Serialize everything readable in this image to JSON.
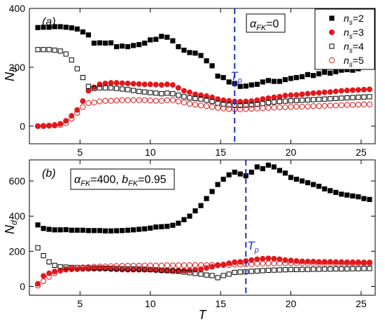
{
  "chart_data": [
    {
      "type": "scatter",
      "panel_label": "(a)",
      "annotation": {
        "symbol": "α",
        "sub": "FK",
        "value": "=0"
      },
      "transition": {
        "x": 16.0,
        "label_main": "T",
        "label_sub": "p"
      },
      "xlim": [
        1.4,
        26
      ],
      "ylim": [
        -60,
        400
      ],
      "xticks": [
        5,
        10,
        15,
        20,
        25
      ],
      "yticks": [
        0,
        200,
        400
      ],
      "ylabel": {
        "main": "N",
        "sub": "d"
      },
      "legend": {
        "placement": "top-right",
        "entries": [
          {
            "series": 0,
            "prefix": "n",
            "sub": "s",
            "suffix": "=2"
          },
          {
            "series": 1,
            "prefix": "n",
            "sub": "s",
            "suffix": "=3"
          },
          {
            "series": 2,
            "prefix": "n",
            "sub": "s",
            "suffix": "=4"
          },
          {
            "series": 3,
            "prefix": "n",
            "sub": "s",
            "suffix": "=5"
          }
        ]
      },
      "x": [
        2.0,
        2.4,
        2.8,
        3.2,
        3.6,
        4.0,
        4.4,
        4.8,
        5.2,
        5.6,
        6.0,
        6.4,
        6.8,
        7.2,
        7.6,
        8.0,
        8.4,
        8.8,
        9.2,
        9.6,
        10.0,
        10.4,
        10.8,
        11.2,
        11.6,
        12.0,
        12.4,
        12.8,
        13.2,
        13.6,
        14.0,
        14.4,
        14.8,
        15.2,
        15.6,
        16.0,
        16.4,
        16.8,
        17.2,
        17.6,
        18.0,
        18.4,
        18.8,
        19.2,
        19.6,
        20.0,
        20.4,
        20.8,
        21.2,
        21.6,
        22.0,
        22.4,
        22.8,
        23.2,
        23.6,
        24.0,
        24.4,
        24.8,
        25.2,
        25.6
      ],
      "series": [
        {
          "style": "filled-square",
          "color": "#000000",
          "values": [
            335,
            336,
            336,
            338,
            338,
            336,
            334,
            330,
            320,
            310,
            282,
            283,
            282,
            283,
            270,
            272,
            270,
            274,
            277,
            282,
            293,
            295,
            305,
            302,
            290,
            270,
            258,
            250,
            248,
            240,
            222,
            205,
            170,
            165,
            150,
            145,
            135,
            136,
            140,
            142,
            150,
            155,
            152,
            152,
            158,
            162,
            165,
            168,
            175,
            172,
            178,
            183,
            180,
            185,
            190,
            192,
            190,
            195,
            200,
            202
          ]
        },
        {
          "style": "filled-circle",
          "color": "#e0191c",
          "values": [
            0,
            1,
            2,
            4,
            8,
            18,
            35,
            55,
            85,
            120,
            132,
            142,
            145,
            147,
            147,
            146,
            145,
            144,
            143,
            142,
            142,
            141,
            140,
            142,
            140,
            130,
            120,
            115,
            108,
            105,
            102,
            98,
            92,
            88,
            86,
            84,
            83,
            84,
            85,
            88,
            92,
            95,
            98,
            100,
            104,
            105,
            106,
            108,
            110,
            112,
            113,
            115,
            116,
            118,
            120,
            121,
            122,
            123,
            124,
            125
          ]
        },
        {
          "style": "open-square",
          "color": "#000000",
          "values": [
            260,
            260,
            260,
            258,
            255,
            245,
            225,
            195,
            165,
            135,
            128,
            130,
            130,
            130,
            128,
            126,
            124,
            121,
            118,
            116,
            114,
            112,
            110,
            112,
            110,
            105,
            100,
            96,
            94,
            92,
            88,
            84,
            78,
            75,
            72,
            70,
            70,
            71,
            72,
            74,
            77,
            80,
            82,
            84,
            85,
            86,
            87,
            88,
            89,
            90,
            91,
            92,
            93,
            94,
            95,
            96,
            97,
            98,
            99,
            100
          ]
        },
        {
          "style": "open-circle",
          "color": "#e0191c",
          "values": [
            0,
            0,
            1,
            2,
            4,
            10,
            25,
            45,
            65,
            78,
            80,
            84,
            86,
            86,
            87,
            88,
            88,
            88,
            88,
            88,
            87,
            86,
            86,
            88,
            88,
            84,
            80,
            76,
            73,
            70,
            68,
            65,
            62,
            60,
            58,
            57,
            57,
            58,
            59,
            60,
            61,
            62,
            63,
            64,
            64,
            65,
            66,
            66,
            67,
            68,
            68,
            69,
            70,
            70,
            71,
            72,
            72,
            73,
            74,
            74
          ]
        }
      ]
    },
    {
      "type": "scatter",
      "panel_label": "(b)",
      "annotation": {
        "parts": [
          {
            "t": "α",
            "sub": "FK",
            "after": "=400, "
          },
          {
            "t": "b",
            "sub": "FK",
            "after": "=0.95"
          }
        ]
      },
      "transition": {
        "x": 16.8,
        "label_main": "T",
        "label_sub": "p"
      },
      "xlim": [
        1.4,
        26
      ],
      "ylim": [
        -50,
        720
      ],
      "xticks": [
        5,
        10,
        15,
        20,
        25
      ],
      "yticks": [
        0,
        200,
        400,
        600
      ],
      "xlabel": "T",
      "ylabel": {
        "main": "N",
        "sub": "d"
      },
      "x": [
        2.0,
        2.4,
        2.8,
        3.2,
        3.6,
        4.0,
        4.4,
        4.8,
        5.2,
        5.6,
        6.0,
        6.4,
        6.8,
        7.2,
        7.6,
        8.0,
        8.4,
        8.8,
        9.2,
        9.6,
        10.0,
        10.4,
        10.8,
        11.2,
        11.6,
        12.0,
        12.4,
        12.8,
        13.2,
        13.6,
        14.0,
        14.4,
        14.8,
        15.2,
        15.6,
        16.0,
        16.4,
        16.8,
        17.2,
        17.6,
        18.0,
        18.4,
        18.8,
        19.2,
        19.6,
        20.0,
        20.4,
        20.8,
        21.2,
        21.6,
        22.0,
        22.4,
        22.8,
        23.2,
        23.6,
        24.0,
        24.4,
        24.8,
        25.2,
        25.6
      ],
      "series": [
        {
          "style": "filled-square",
          "color": "#000000",
          "values": [
            350,
            330,
            325,
            322,
            322,
            323,
            320,
            320,
            320,
            318,
            318,
            318,
            316,
            316,
            317,
            318,
            320,
            322,
            325,
            328,
            332,
            338,
            340,
            342,
            348,
            360,
            380,
            400,
            430,
            460,
            500,
            540,
            580,
            610,
            635,
            650,
            640,
            630,
            650,
            680,
            670,
            690,
            680,
            660,
            645,
            620,
            610,
            600,
            590,
            580,
            570,
            555,
            545,
            535,
            525,
            520,
            515,
            510,
            500,
            495
          ]
        },
        {
          "style": "filled-circle",
          "color": "#e0191c",
          "values": [
            15,
            60,
            75,
            85,
            90,
            95,
            97,
            98,
            99,
            100,
            100,
            100,
            100,
            98,
            97,
            96,
            95,
            95,
            95,
            95,
            95,
            92,
            90,
            90,
            90,
            90,
            90,
            92,
            95,
            98,
            105,
            112,
            120,
            125,
            132,
            138,
            140,
            145,
            150,
            155,
            158,
            160,
            158,
            155,
            150,
            148,
            145,
            143,
            142,
            142,
            140,
            140,
            140,
            139,
            139,
            138,
            138,
            138,
            137,
            137
          ]
        },
        {
          "style": "open-square",
          "color": "#000000",
          "values": [
            220,
            175,
            140,
            120,
            112,
            110,
            108,
            108,
            107,
            106,
            105,
            105,
            104,
            103,
            102,
            101,
            100,
            100,
            99,
            98,
            96,
            95,
            92,
            90,
            88,
            86,
            82,
            78,
            74,
            70,
            65,
            62,
            50,
            62,
            70,
            80,
            82,
            84,
            86,
            88,
            90,
            92,
            93,
            94,
            95,
            96,
            96,
            97,
            97,
            98,
            98,
            99,
            99,
            100,
            100,
            100,
            101,
            101,
            102,
            102
          ]
        },
        {
          "style": "open-circle",
          "color": "#e0191c",
          "values": [
            5,
            30,
            55,
            75,
            90,
            98,
            102,
            106,
            108,
            110,
            112,
            113,
            114,
            115,
            116,
            117,
            118,
            118,
            118,
            119,
            119,
            119,
            119,
            120,
            120,
            120,
            120,
            121,
            121,
            121,
            121,
            122,
            122,
            122,
            122,
            124,
            125,
            126,
            128,
            130,
            130,
            131,
            131,
            132,
            132,
            132,
            132,
            132,
            132,
            132,
            132,
            132,
            132,
            132,
            132,
            132,
            132,
            132,
            132,
            132
          ]
        }
      ]
    }
  ]
}
